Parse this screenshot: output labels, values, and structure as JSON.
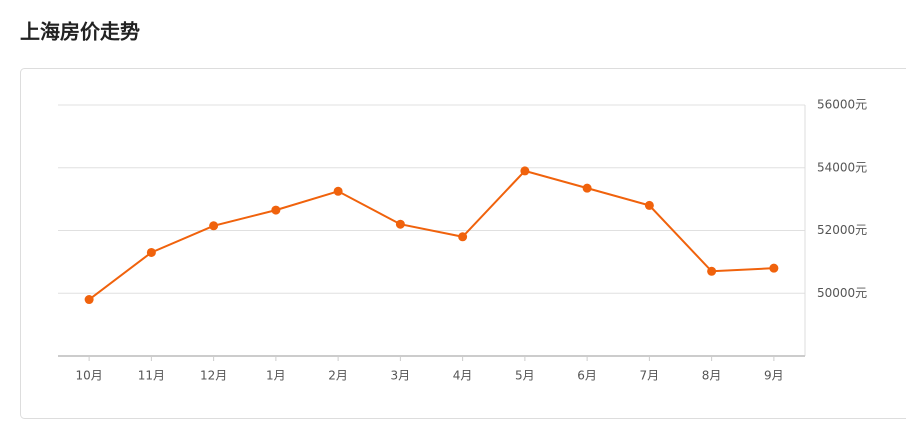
{
  "chart_data": {
    "type": "line",
    "title": "上海房价走势",
    "categories": [
      "10月",
      "11月",
      "12月",
      "1月",
      "2月",
      "3月",
      "4月",
      "5月",
      "6月",
      "7月",
      "8月",
      "9月"
    ],
    "values": [
      49800,
      51300,
      52150,
      52650,
      53250,
      52200,
      51800,
      53900,
      53350,
      52800,
      50700,
      50800
    ],
    "color": "#f0620c",
    "ylim": [
      48000,
      56000
    ],
    "yticks": [
      {
        "value": 50000,
        "label": "50000元"
      },
      {
        "value": 52000,
        "label": "52000元"
      },
      {
        "value": 54000,
        "label": "54000元"
      },
      {
        "value": 56000,
        "label": "56000元"
      }
    ],
    "grid": true
  }
}
